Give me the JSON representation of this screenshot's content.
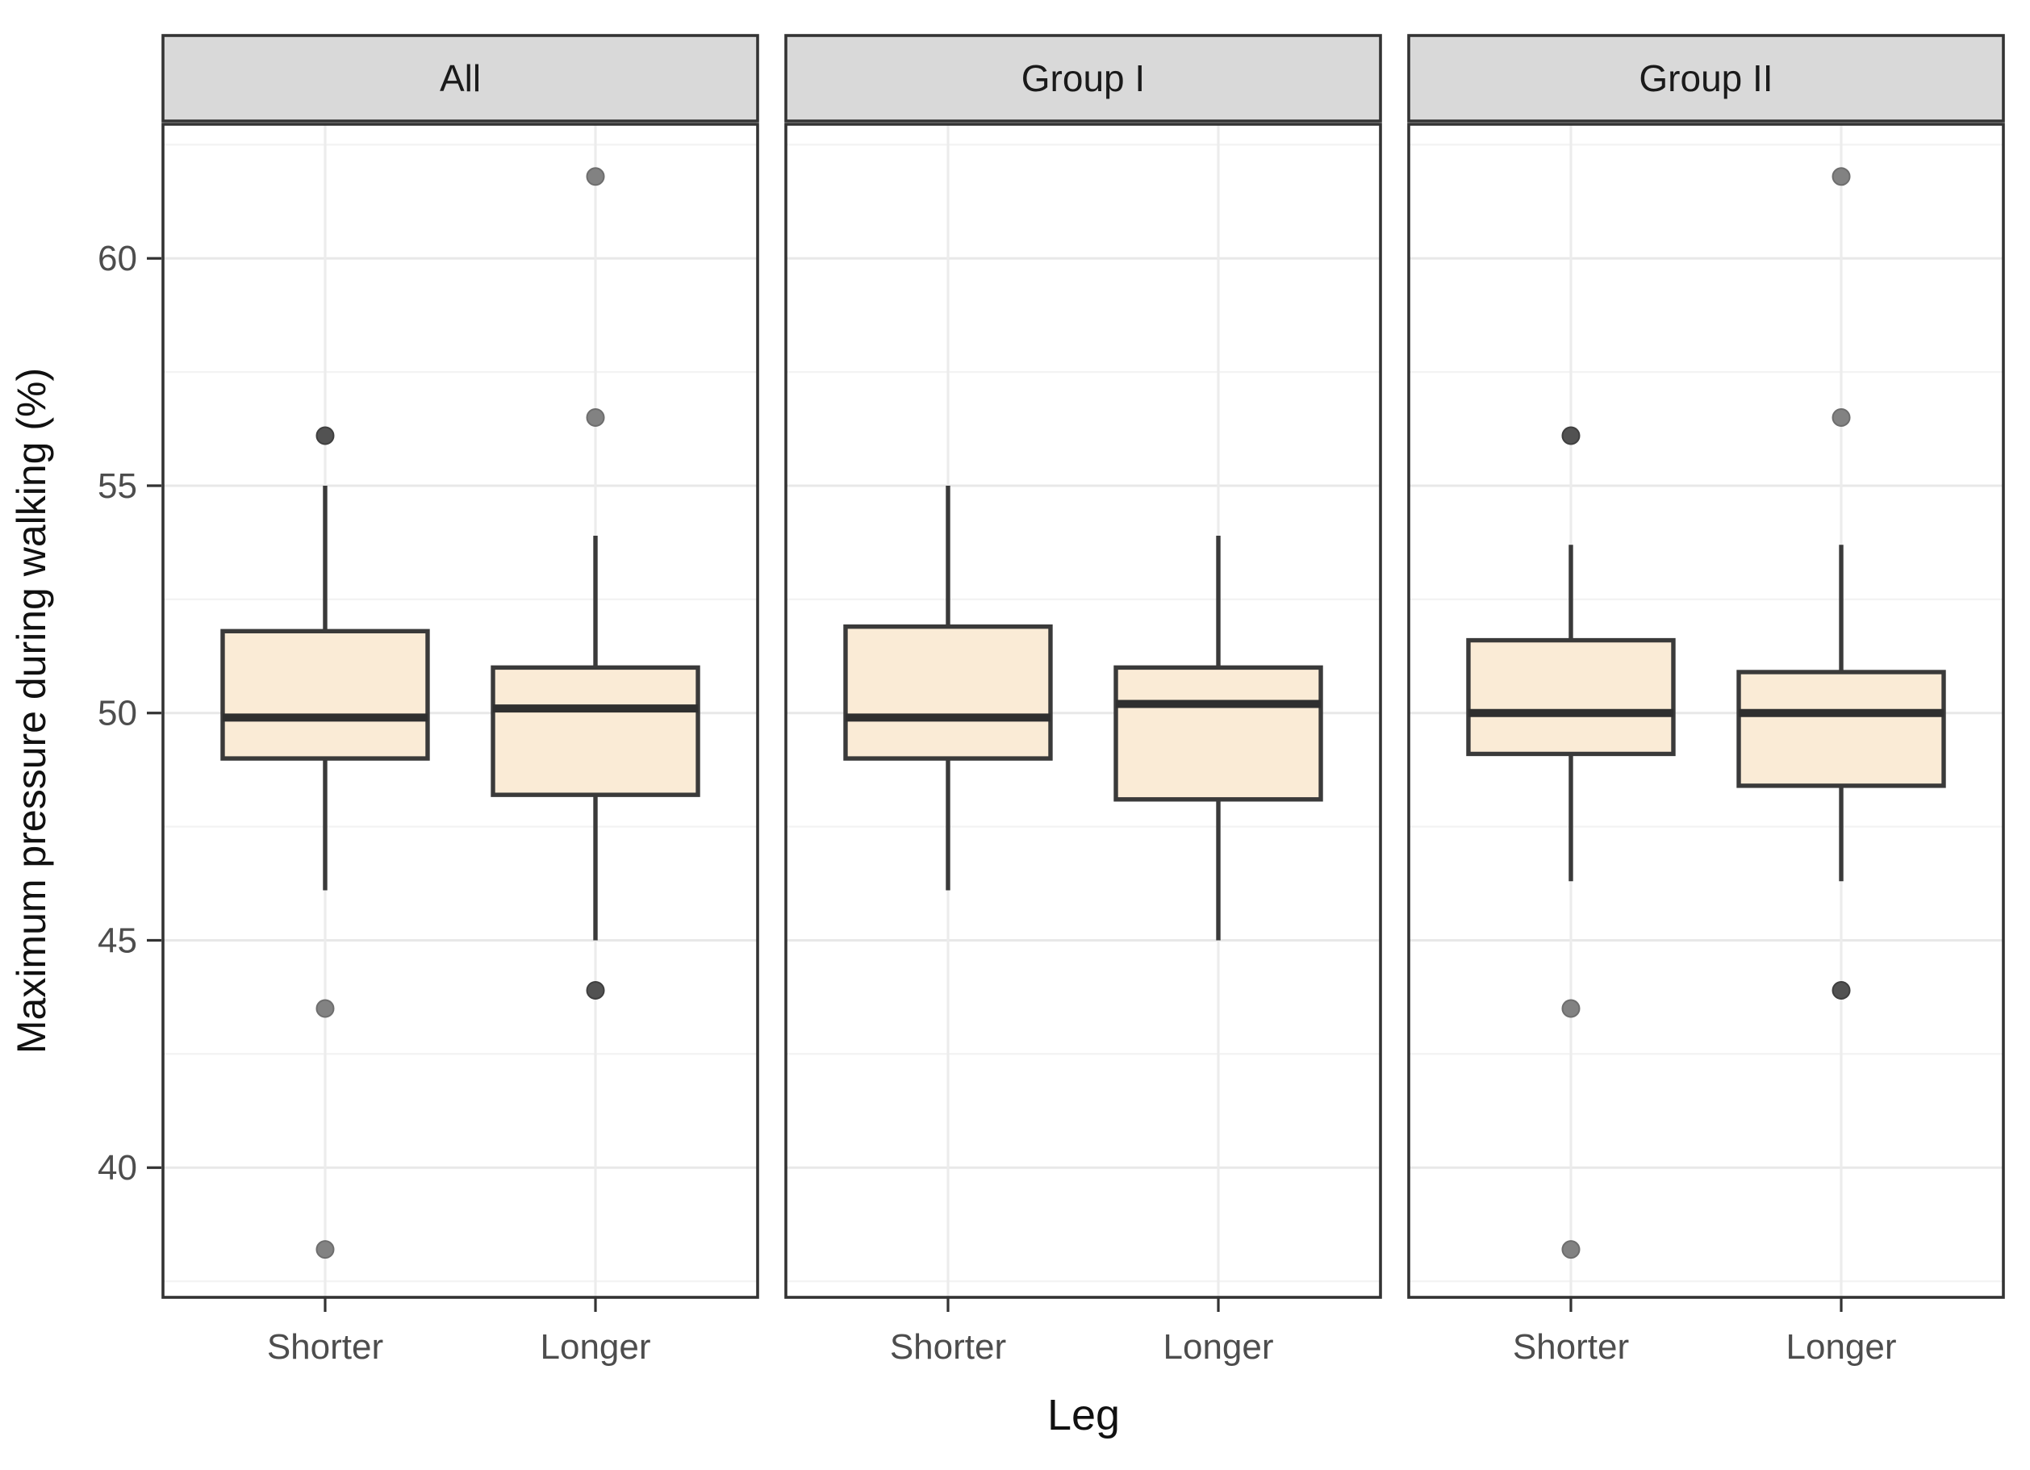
{
  "chart_data": {
    "type": "boxplot",
    "title": "",
    "y_axis": {
      "title": "Maximum pressure during walking (%)",
      "tick_values": [
        60,
        55,
        50,
        45,
        40
      ],
      "domain": [
        37.0,
        63.0
      ],
      "major_gridlines": [
        40,
        45,
        50,
        55,
        60
      ],
      "minor_gridlines": [
        37.5,
        42.5,
        47.5,
        52.5,
        57.5,
        62.5
      ]
    },
    "x_axis": {
      "title": "Leg",
      "categories": [
        "Shorter",
        "Longer"
      ]
    },
    "facets": [
      {
        "label": "All",
        "boxes": [
          {
            "category": "Shorter",
            "whisker_low": 46.1,
            "q1": 49.0,
            "median": 49.9,
            "q3": 51.8,
            "whisker_high": 55.0,
            "outliers": [
              {
                "value": 56.1,
                "dark": true
              },
              {
                "value": 43.5,
                "dark": false
              },
              {
                "value": 38.2,
                "dark": false
              }
            ]
          },
          {
            "category": "Longer",
            "whisker_low": 45.0,
            "q1": 48.2,
            "median": 50.1,
            "q3": 51.0,
            "whisker_high": 53.9,
            "outliers": [
              {
                "value": 61.8,
                "dark": false
              },
              {
                "value": 56.5,
                "dark": false
              },
              {
                "value": 43.9,
                "dark": true
              }
            ]
          }
        ]
      },
      {
        "label": "Group I",
        "boxes": [
          {
            "category": "Shorter",
            "whisker_low": 46.1,
            "q1": 49.0,
            "median": 49.9,
            "q3": 51.9,
            "whisker_high": 55.0,
            "outliers": []
          },
          {
            "category": "Longer",
            "whisker_low": 45.0,
            "q1": 48.1,
            "median": 50.2,
            "q3": 51.0,
            "whisker_high": 53.9,
            "outliers": []
          }
        ]
      },
      {
        "label": "Group II",
        "boxes": [
          {
            "category": "Shorter",
            "whisker_low": 46.3,
            "q1": 49.1,
            "median": 50.0,
            "q3": 51.6,
            "whisker_high": 53.7,
            "outliers": [
              {
                "value": 56.1,
                "dark": true
              },
              {
                "value": 43.5,
                "dark": false
              },
              {
                "value": 38.2,
                "dark": false
              }
            ]
          },
          {
            "category": "Longer",
            "whisker_low": 46.3,
            "q1": 48.4,
            "median": 50.0,
            "q3": 50.9,
            "whisker_high": 53.7,
            "outliers": [
              {
                "value": 61.8,
                "dark": false
              },
              {
                "value": 56.5,
                "dark": false
              },
              {
                "value": 43.9,
                "dark": true
              }
            ]
          }
        ]
      }
    ],
    "style": {
      "box_fill": "#faebd6",
      "box_border": "#3a3a3a",
      "median_color": "#2f2f2f",
      "whisker_color": "#3a3a3a",
      "strip_bg": "#d9d9d9",
      "strip_text": "#1a1a1a",
      "panel_border": "#333333",
      "grid_major": "#e8e8e8",
      "grid_minor": "#f3f3f3",
      "grid_vertical": "#ececec",
      "outlier_fill": "#828282",
      "outlier_dark_fill": "#525252",
      "tick_label_color": "#4d4d4d",
      "axis_title_color": "#111111",
      "tick_color": "#333333",
      "panel_bg": "#ffffff"
    }
  }
}
